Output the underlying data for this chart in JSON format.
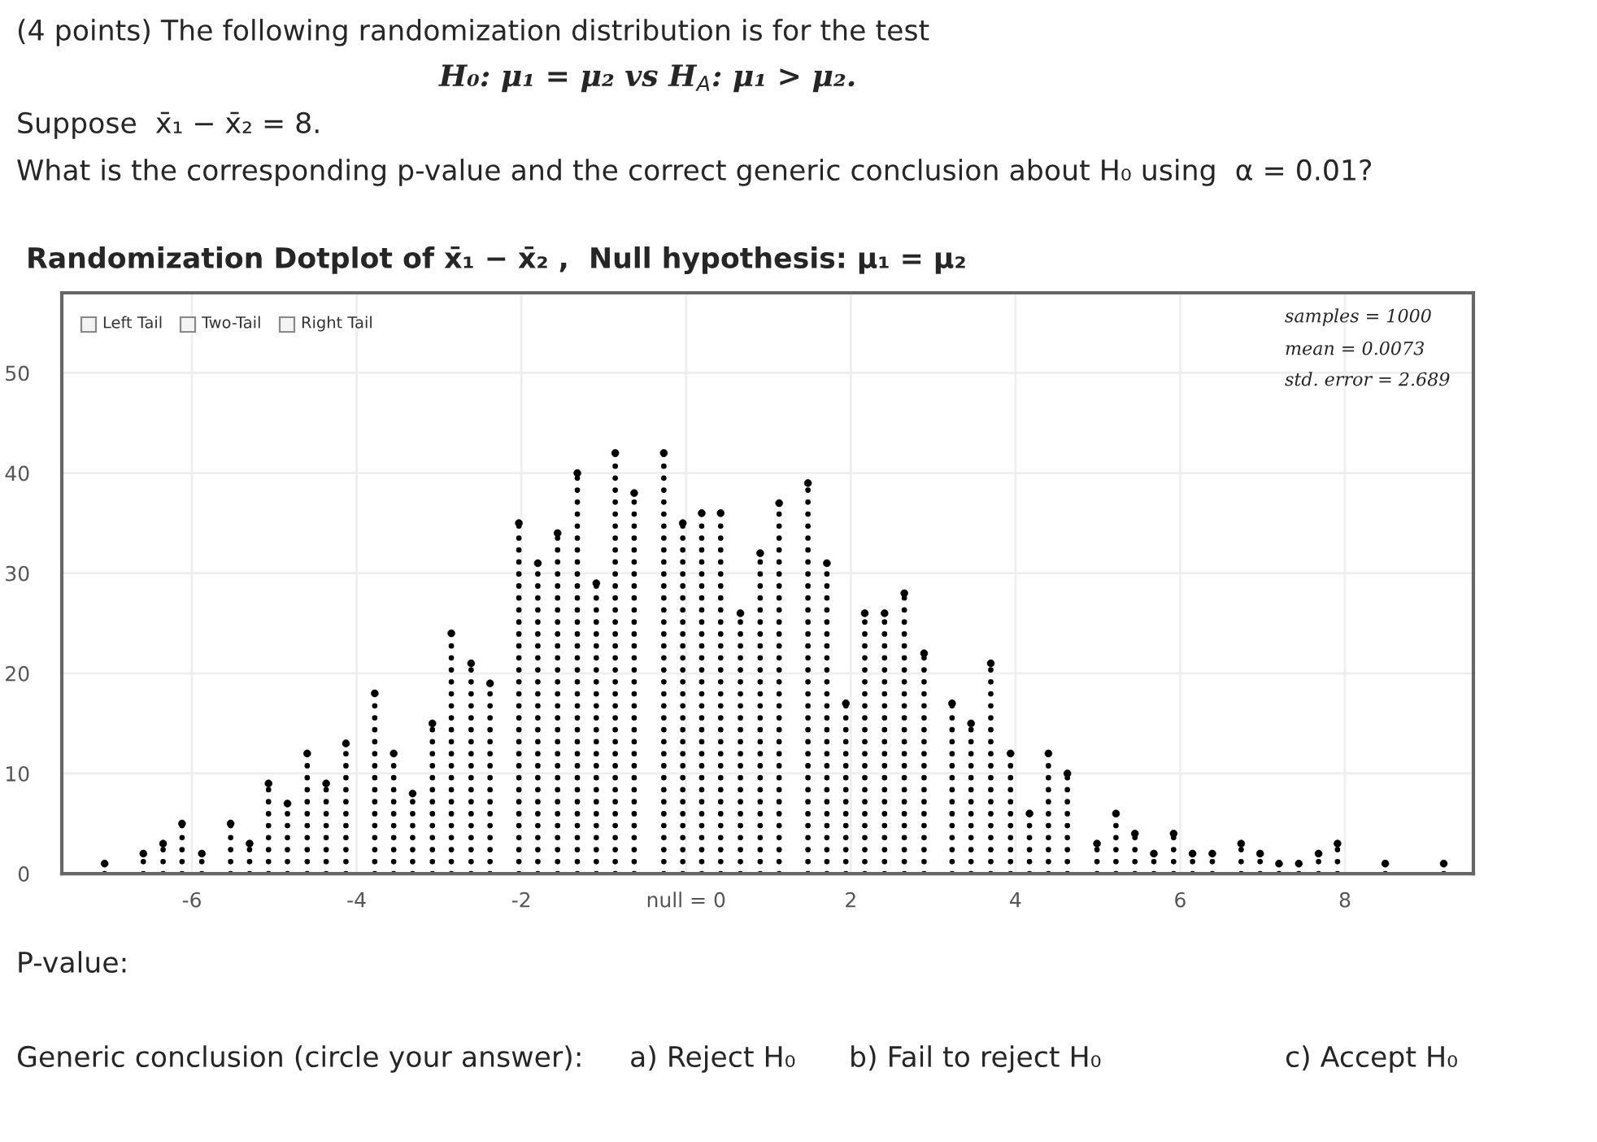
{
  "chart_data": {
    "type": "lollipop",
    "title": "Randomization Dotplot of x̄₁ − x̄₂ ,  Null hypothesis: μ₁ = μ₂",
    "x": [
      -7.06,
      -6.59,
      -6.35,
      -6.12,
      -5.88,
      -5.53,
      -5.3,
      -5.07,
      -4.84,
      -4.6,
      -4.37,
      -4.13,
      -3.78,
      -3.55,
      -3.32,
      -3.08,
      -2.85,
      -2.61,
      -2.38,
      -2.03,
      -1.8,
      -1.56,
      -1.32,
      -1.09,
      -0.86,
      -0.63,
      -0.27,
      -0.04,
      0.19,
      0.42,
      0.66,
      0.9,
      1.13,
      1.48,
      1.71,
      1.94,
      2.17,
      2.41,
      2.65,
      2.89,
      3.23,
      3.46,
      3.7,
      3.94,
      4.17,
      4.4,
      4.63,
      4.99,
      5.22,
      5.45,
      5.68,
      5.92,
      6.15,
      6.39,
      6.74,
      6.97,
      7.2,
      7.44,
      7.68,
      7.91,
      8.49,
      9.2
    ],
    "values": [
      1,
      2,
      3,
      5,
      2,
      5,
      3,
      9,
      7,
      12,
      9,
      13,
      18,
      12,
      8,
      15,
      24,
      21,
      19,
      35,
      31,
      34,
      40,
      29,
      42,
      38,
      42,
      35,
      36,
      36,
      26,
      32,
      37,
      39,
      31,
      17,
      26,
      26,
      28,
      22,
      17,
      15,
      21,
      12,
      6,
      12,
      10,
      3,
      6,
      4,
      2,
      4,
      2,
      2,
      3,
      2,
      1,
      1,
      2,
      3,
      1,
      1
    ],
    "color": "#000000",
    "marker": "circle",
    "line_style": "dotted",
    "xlim": [
      -7.58,
      9.56
    ],
    "ylim": [
      0,
      58
    ],
    "xticks": [
      -6,
      -4,
      -2,
      {
        "value": 0,
        "label": "null = 0"
      },
      2,
      4,
      6,
      8
    ],
    "yticks": [
      0,
      10,
      20,
      30,
      40,
      50
    ],
    "grid": true,
    "annotations": [
      "(4 points) The following randomization distribution is for the test",
      "H₀: μ₁ = μ₂ vs H$_{A}$: μ₁ > μ₂.",
      "Suppose  x̄₁ − x̄₂ = 8.",
      "What is the corresponding p-value and the correct generic conclusion about H₀ using  α = 0.01?",
      "Left Tail",
      "Two-Tail",
      "Right Tail",
      "samples = 1000",
      "mean = 0.0073",
      "std. error = 2.689",
      "P-value:",
      "Generic conclusion (circle your answer):",
      "a) Reject H₀",
      "b) Fail to reject H₀",
      "c) Accept H₀"
    ]
  }
}
